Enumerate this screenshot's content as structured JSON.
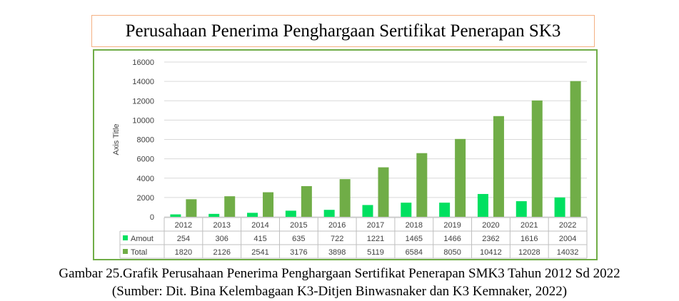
{
  "figure_title": "Perusahaan Penerima Penghargaan Sertifikat Penerapan SK3",
  "caption_line1": "Gambar 25.Grafik Perusahaan Penerima Penghargaan Sertifikat Penerapan SMK3 Tahun 2012 Sd 2022",
  "caption_line2": "(Sumber: Dit. Bina Kelembagaan K3-Ditjen Binwasnaker dan K3 Kemnaker, 2022)",
  "chart_data": {
    "type": "bar",
    "ylabel": "Axis Title",
    "ylim": [
      0,
      16000
    ],
    "yticks": [
      0,
      2000,
      4000,
      6000,
      8000,
      10000,
      12000,
      14000,
      16000
    ],
    "grid": true,
    "legend_placement": "data-table",
    "categories": [
      "2012",
      "2013",
      "2014",
      "2015",
      "2016",
      "2017",
      "2018",
      "2019",
      "2020",
      "2021",
      "2022"
    ],
    "series": [
      {
        "name": "Amout",
        "color": "#00e060",
        "values": [
          254,
          306,
          415,
          635,
          722,
          1221,
          1465,
          1466,
          2362,
          1616,
          2004
        ]
      },
      {
        "name": "Total",
        "color": "#70ad47",
        "values": [
          1820,
          2126,
          2541,
          3176,
          3898,
          5119,
          6584,
          8050,
          10412,
          12028,
          14032
        ]
      }
    ]
  }
}
